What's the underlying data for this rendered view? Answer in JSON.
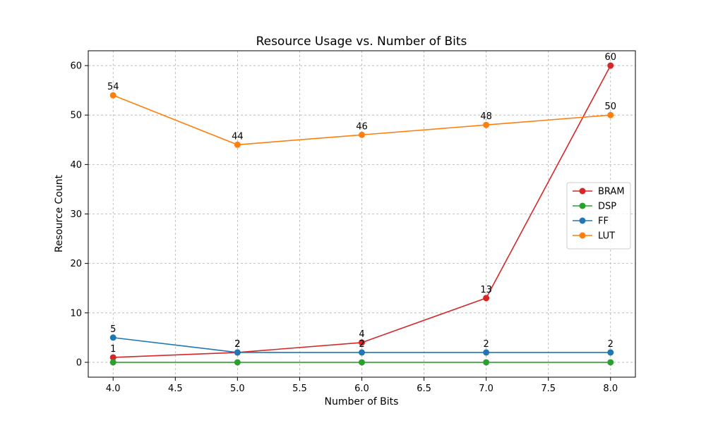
{
  "chart_data": {
    "type": "line",
    "title": "Resource Usage vs. Number of Bits",
    "xlabel": "Number of Bits",
    "ylabel": "Resource Count",
    "xlim": [
      3.8,
      8.2
    ],
    "ylim": [
      -3,
      63
    ],
    "x_ticks": [
      "4.0",
      "4.5",
      "5.0",
      "5.5",
      "6.0",
      "6.5",
      "7.0",
      "7.5",
      "8.0"
    ],
    "y_ticks": [
      "0",
      "10",
      "20",
      "30",
      "40",
      "50",
      "60"
    ],
    "x": [
      4,
      5,
      6,
      7,
      8
    ],
    "grid": true,
    "legend_position": "center-right",
    "series": [
      {
        "name": "BRAM",
        "color": "#d62728",
        "values": [
          1,
          2,
          4,
          13,
          60
        ],
        "labels": [
          "1",
          "2",
          "4",
          "13",
          "60"
        ]
      },
      {
        "name": "DSP",
        "color": "#2ca02c",
        "values": [
          0,
          0,
          0,
          0,
          0
        ],
        "labels": []
      },
      {
        "name": "FF",
        "color": "#1f77b4",
        "values": [
          5,
          2,
          2,
          2,
          2
        ],
        "labels": [
          "5",
          "2",
          "2",
          "2",
          "2"
        ]
      },
      {
        "name": "LUT",
        "color": "#ff7f0e",
        "values": [
          54,
          44,
          46,
          48,
          50
        ],
        "labels": [
          "54",
          "44",
          "46",
          "48",
          "50"
        ]
      }
    ]
  }
}
